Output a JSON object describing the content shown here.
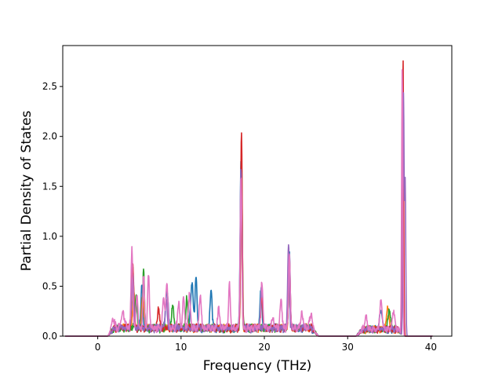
{
  "chart_data": {
    "type": "line",
    "title": "",
    "xlabel": "Frequency (THz)",
    "ylabel": "Partial Density of States",
    "xlim": [
      -4.2,
      42.5
    ],
    "ylim": [
      0.0,
      2.91
    ],
    "xticks": [
      0,
      10,
      20,
      30,
      40
    ],
    "xtick_labels": [
      "0",
      "10",
      "20",
      "30",
      "40"
    ],
    "yticks": [
      0.0,
      0.5,
      1.0,
      1.5,
      2.0,
      2.5
    ],
    "ytick_labels": [
      "0.0",
      "0.5",
      "1.0",
      "1.5",
      "2.0",
      "2.5"
    ],
    "grid": false,
    "legend": "none",
    "x_range": [
      -3.9,
      40.2
    ],
    "baseline_noise": 0.035,
    "background_bands": [
      {
        "from": 1.2,
        "to": 26.5,
        "level": 0.05
      },
      {
        "from": 31.0,
        "to": 36.8,
        "level": 0.04
      }
    ],
    "series": [
      {
        "color": "#1f77b4",
        "peaks": [
          {
            "x": 4.2,
            "h": 0.6,
            "w": 0.12
          },
          {
            "x": 5.3,
            "h": 0.45,
            "w": 0.12
          },
          {
            "x": 8.3,
            "h": 0.38,
            "w": 0.15
          },
          {
            "x": 11.3,
            "h": 0.45,
            "w": 0.15
          },
          {
            "x": 11.8,
            "h": 0.5,
            "w": 0.12
          },
          {
            "x": 13.6,
            "h": 0.38,
            "w": 0.12
          },
          {
            "x": 17.2,
            "h": 1.7,
            "w": 0.1
          },
          {
            "x": 19.6,
            "h": 0.38,
            "w": 0.12
          },
          {
            "x": 23.0,
            "h": 0.75,
            "w": 0.1
          },
          {
            "x": 34.0,
            "h": 0.2,
            "w": 0.15
          },
          {
            "x": 36.6,
            "h": 1.6,
            "w": 0.08
          }
        ]
      },
      {
        "color": "#ff7f0e",
        "peaks": [
          {
            "x": 4.3,
            "h": 0.4,
            "w": 0.12
          },
          {
            "x": 5.4,
            "h": 0.35,
            "w": 0.12
          },
          {
            "x": 17.2,
            "h": 1.2,
            "w": 0.1
          },
          {
            "x": 23.0,
            "h": 0.5,
            "w": 0.1
          },
          {
            "x": 34.8,
            "h": 0.22,
            "w": 0.15
          },
          {
            "x": 36.6,
            "h": 0.9,
            "w": 0.08
          }
        ]
      },
      {
        "color": "#2ca02c",
        "peaks": [
          {
            "x": 4.6,
            "h": 0.35,
            "w": 0.12
          },
          {
            "x": 5.5,
            "h": 0.58,
            "w": 0.1
          },
          {
            "x": 9.0,
            "h": 0.2,
            "w": 0.15
          },
          {
            "x": 10.7,
            "h": 0.3,
            "w": 0.12
          },
          {
            "x": 17.25,
            "h": 1.75,
            "w": 0.1
          },
          {
            "x": 23.0,
            "h": 0.6,
            "w": 0.1
          },
          {
            "x": 35.0,
            "h": 0.2,
            "w": 0.15
          },
          {
            "x": 36.6,
            "h": 2.0,
            "w": 0.08
          }
        ]
      },
      {
        "color": "#d62728",
        "peaks": [
          {
            "x": 4.2,
            "h": 0.65,
            "w": 0.12
          },
          {
            "x": 7.3,
            "h": 0.2,
            "w": 0.12
          },
          {
            "x": 17.25,
            "h": 2.0,
            "w": 0.09
          },
          {
            "x": 19.7,
            "h": 0.3,
            "w": 0.12
          },
          {
            "x": 23.0,
            "h": 0.7,
            "w": 0.1
          },
          {
            "x": 36.65,
            "h": 2.77,
            "w": 0.07
          }
        ]
      },
      {
        "color": "#9467bd",
        "peaks": [
          {
            "x": 4.2,
            "h": 0.55,
            "w": 0.12
          },
          {
            "x": 8.2,
            "h": 0.3,
            "w": 0.12
          },
          {
            "x": 17.2,
            "h": 1.6,
            "w": 0.1
          },
          {
            "x": 22.9,
            "h": 0.83,
            "w": 0.1
          },
          {
            "x": 36.7,
            "h": 2.4,
            "w": 0.07
          },
          {
            "x": 36.9,
            "h": 1.55,
            "w": 0.07
          }
        ]
      },
      {
        "color": "#e377c2",
        "peaks": [
          {
            "x": 1.8,
            "h": 0.1,
            "w": 0.2
          },
          {
            "x": 3.0,
            "h": 0.15,
            "w": 0.2
          },
          {
            "x": 4.1,
            "h": 0.8,
            "w": 0.1
          },
          {
            "x": 4.7,
            "h": 0.3,
            "w": 0.12
          },
          {
            "x": 5.5,
            "h": 0.52,
            "w": 0.1
          },
          {
            "x": 6.1,
            "h": 0.55,
            "w": 0.1
          },
          {
            "x": 7.9,
            "h": 0.3,
            "w": 0.12
          },
          {
            "x": 8.3,
            "h": 0.45,
            "w": 0.12
          },
          {
            "x": 9.7,
            "h": 0.27,
            "w": 0.12
          },
          {
            "x": 10.3,
            "h": 0.3,
            "w": 0.12
          },
          {
            "x": 11.0,
            "h": 0.35,
            "w": 0.12
          },
          {
            "x": 12.3,
            "h": 0.35,
            "w": 0.12
          },
          {
            "x": 14.5,
            "h": 0.2,
            "w": 0.12
          },
          {
            "x": 15.8,
            "h": 0.44,
            "w": 0.1
          },
          {
            "x": 17.2,
            "h": 1.5,
            "w": 0.1
          },
          {
            "x": 19.7,
            "h": 0.45,
            "w": 0.12
          },
          {
            "x": 21.0,
            "h": 0.1,
            "w": 0.15
          },
          {
            "x": 22.0,
            "h": 0.28,
            "w": 0.12
          },
          {
            "x": 23.0,
            "h": 0.78,
            "w": 0.1
          },
          {
            "x": 24.5,
            "h": 0.15,
            "w": 0.15
          },
          {
            "x": 25.6,
            "h": 0.15,
            "w": 0.15
          },
          {
            "x": 32.2,
            "h": 0.12,
            "w": 0.15
          },
          {
            "x": 34.0,
            "h": 0.27,
            "w": 0.15
          },
          {
            "x": 35.5,
            "h": 0.18,
            "w": 0.15
          },
          {
            "x": 36.55,
            "h": 2.67,
            "w": 0.07
          }
        ]
      }
    ]
  }
}
